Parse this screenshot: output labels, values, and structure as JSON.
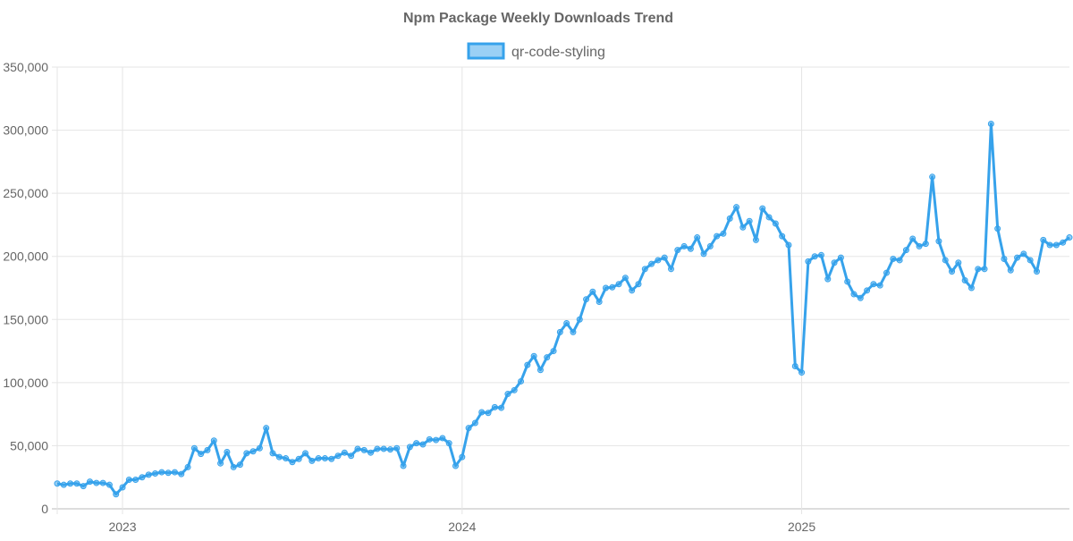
{
  "chart_data": {
    "type": "line",
    "title": "Npm Package Weekly Downloads Trend",
    "legend": {
      "position": "top",
      "entries": [
        "qr-code-styling"
      ]
    },
    "xlabel": "",
    "ylabel": "",
    "ylim": [
      0,
      350000
    ],
    "yticks": [
      0,
      50000,
      100000,
      150000,
      200000,
      250000,
      300000,
      350000
    ],
    "ytick_labels": [
      "0",
      "50,000",
      "100,000",
      "150,000",
      "200,000",
      "250,000",
      "300,000",
      "350,000"
    ],
    "xticks": [
      {
        "label": "2023",
        "index": 10
      },
      {
        "label": "2024",
        "index": 62
      },
      {
        "label": "2025",
        "index": 114
      }
    ],
    "grid": true,
    "colors": {
      "line": "#36a2eb",
      "point_fill": "rgba(54,162,235,0.5)",
      "legend_fill": "rgba(54,162,235,0.5)",
      "grid": "#e5e5e5",
      "text": "#666666"
    },
    "series": [
      {
        "name": "qr-code-styling",
        "values": [
          20000,
          19000,
          20000,
          20000,
          18000,
          21500,
          20500,
          20500,
          19000,
          11500,
          17000,
          23000,
          23000,
          25000,
          27000,
          28000,
          29000,
          28500,
          29000,
          27500,
          33000,
          48000,
          43500,
          46500,
          54000,
          36000,
          45000,
          33000,
          35000,
          44000,
          45500,
          48000,
          64000,
          44000,
          41000,
          40000,
          37000,
          39500,
          44000,
          38000,
          40000,
          40000,
          39500,
          42000,
          44500,
          42000,
          47500,
          46500,
          44500,
          47500,
          47500,
          47000,
          48000,
          34000,
          49000,
          52000,
          51000,
          55000,
          54500,
          56000,
          52000,
          34000,
          41000,
          64000,
          68000,
          76500,
          76000,
          80500,
          80000,
          91000,
          94000,
          101000,
          114000,
          121000,
          110000,
          120000,
          125000,
          140000,
          147000,
          140000,
          150000,
          166000,
          172000,
          164000,
          175000,
          175500,
          178000,
          183000,
          173000,
          178000,
          190000,
          194000,
          197000,
          199000,
          190000,
          205000,
          208000,
          206000,
          215000,
          202000,
          208000,
          216000,
          218000,
          230000,
          239000,
          223000,
          228000,
          213000,
          238000,
          231000,
          226000,
          216000,
          209000,
          113000,
          108000,
          196000,
          200000,
          201000,
          182000,
          195000,
          199000,
          180000,
          170000,
          167000,
          173000,
          178000,
          177000,
          187000,
          198000,
          197000,
          205000,
          214000,
          208000,
          210000,
          263000,
          212000,
          197000,
          188000,
          195000,
          181000,
          175000,
          190000,
          190000,
          305000,
          222000,
          198000,
          189000,
          199000,
          202000,
          197000,
          188000,
          213000,
          209000,
          209000,
          211000,
          215000
        ]
      }
    ]
  }
}
